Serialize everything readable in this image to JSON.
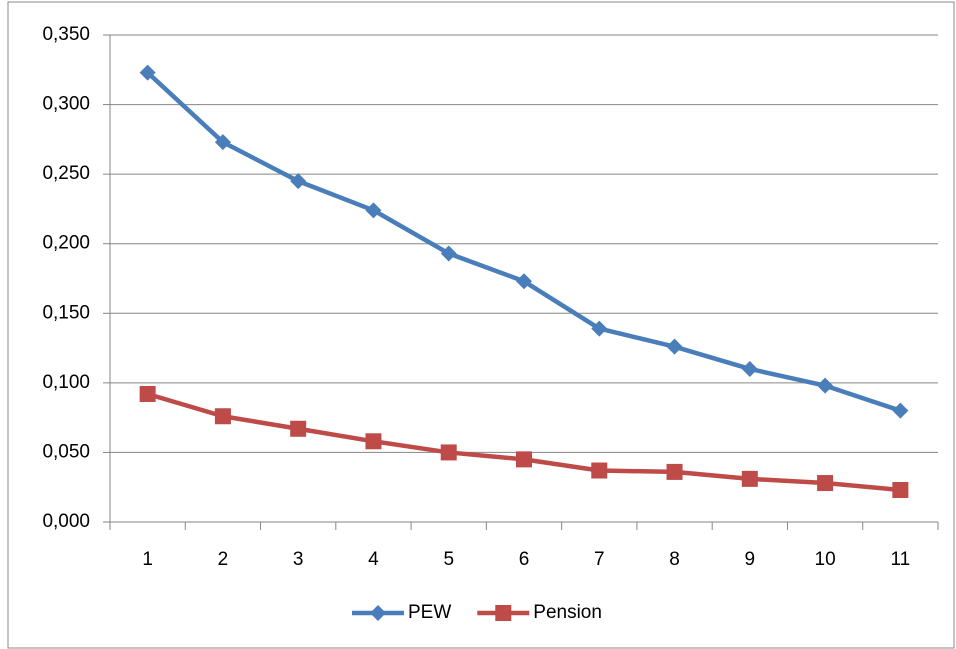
{
  "chart_data": {
    "type": "line",
    "categories": [
      "1",
      "2",
      "3",
      "4",
      "5",
      "6",
      "7",
      "8",
      "9",
      "10",
      "11"
    ],
    "series": [
      {
        "name": "PEW",
        "color": "#4a7ebb",
        "marker": "diamond",
        "values": [
          0.323,
          0.273,
          0.245,
          0.224,
          0.193,
          0.173,
          0.139,
          0.126,
          0.11,
          0.098,
          0.08
        ]
      },
      {
        "name": "Pension",
        "color": "#be4b48",
        "marker": "square",
        "values": [
          0.092,
          0.076,
          0.067,
          0.058,
          0.05,
          0.045,
          0.037,
          0.036,
          0.031,
          0.028,
          0.023
        ]
      }
    ],
    "ylim": [
      0,
      0.35
    ],
    "yticks": [
      {
        "value": 0,
        "label": "0,000"
      },
      {
        "value": 0.05,
        "label": "0,050"
      },
      {
        "value": 0.1,
        "label": "0,100"
      },
      {
        "value": 0.15,
        "label": "0,150"
      },
      {
        "value": 0.2,
        "label": "0,200"
      },
      {
        "value": 0.25,
        "label": "0,250"
      },
      {
        "value": 0.3,
        "label": "0,300"
      },
      {
        "value": 0.35,
        "label": "0,350"
      }
    ],
    "grid": true,
    "legend": "bottom"
  }
}
